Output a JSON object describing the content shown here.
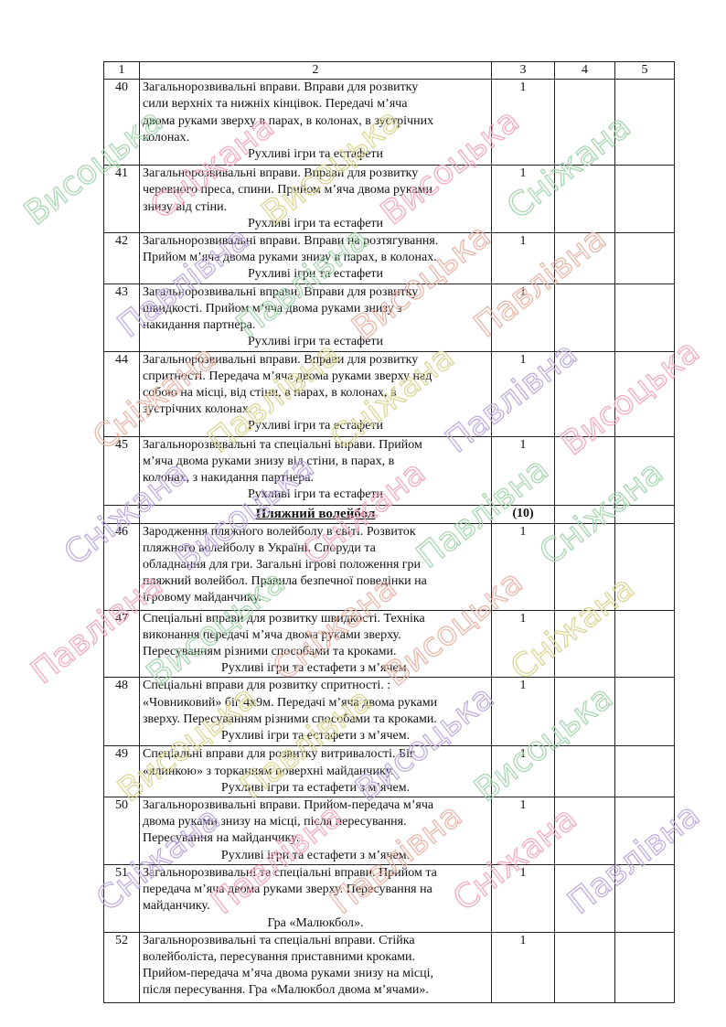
{
  "table": {
    "headers": [
      "1",
      "2",
      "3",
      "4",
      "5"
    ],
    "rows_a": [
      {
        "num": "40",
        "hours": "1",
        "lines": [
          "Загальнорозвивальні вправи. Вправи для розвитку",
          "сили верхніх та нижніх кінцівок. Передачі м’яча",
          "двома руками зверху в парах, в колонах, в зустрічних",
          "колонах."
        ],
        "sub": "Рухливі ігри та естафети"
      },
      {
        "num": "41",
        "hours": "1",
        "lines": [
          "Загальнорозвивальні вправи. Вправи для розвитку",
          "черевного преса, спини. Прийом м’яча двома руками",
          "знизу від стіни."
        ],
        "sub": "Рухливі ігри та естафети"
      },
      {
        "num": "42",
        "hours": "1",
        "lines": [
          "Загальнорозвивальні вправи. Вправи на розтягування.",
          "Прийом м’яча двома руками знизу в парах, в колонах."
        ],
        "sub": "Рухливі ігри та естафети"
      },
      {
        "num": "43",
        "hours": "1",
        "lines": [
          "Загальнорозвивальні вправи. Вправи для розвитку",
          "швидкості. Прийом м’яча двома руками знизу з",
          "накидання партнера."
        ],
        "sub": "Рухливі ігри та естафети"
      },
      {
        "num": "44",
        "hours": "1",
        "lines": [
          "Загальнорозвивальні вправи. Вправи для розвитку",
          "спритності. Передача м’яча двома руками зверху над",
          "собою на місці, від стіни, в парах, в колонах, в",
          "зустрічних колонах."
        ],
        "sub": "Рухливі ігри та естафети"
      },
      {
        "num": "45",
        "hours": "1",
        "lines": [
          "Загальнорозвивальні та спеціальні вправи. Прийом",
          "м’яча двома руками знизу від стіни, в парах, в",
          "колонах, з накидання партнера."
        ],
        "sub": "Рухливі ігри та естафети"
      }
    ],
    "section": {
      "title": "Пляжний волейбол",
      "hours": "(10)"
    },
    "rows_b": [
      {
        "num": "46",
        "hours": "1",
        "lines": [
          "Зародження пляжного волейболу в світі. Розвиток",
          "пляжного волейболу в Україні. Споруди та",
          "обладнання для гри. Загальні ігрові положення гри",
          "пляжний волейбол. Правила безпечної поведінки на",
          "ігровому майданчику."
        ],
        "sub": ""
      },
      {
        "num": "47",
        "hours": "1",
        "lines": [
          "Спеціальні вправи для розвитку швидкості. Техніка",
          "виконання передачі м’яча двома руками зверху.",
          "Пересуванням різними способами та кроками."
        ],
        "sub": "Рухливі ігри та естафети з м’ячем."
      },
      {
        "num": "48",
        "hours": "1",
        "lines": [
          "Спеціальні вправи для розвитку спритності. :",
          "«Човниковий» біг 4х9м. Передачі м’яча двома руками",
          "зверху. Пересуванням різними способами та кроками."
        ],
        "sub": "Рухливі ігри та естафети з м’ячем."
      },
      {
        "num": "49",
        "hours": "1",
        "lines": [
          "Спеціальні вправи для розвитку витривалості. Біг",
          "«ялинкою» з торканням поверхні майданчику."
        ],
        "sub": "Рухливі ігри та естафети з м’ячем."
      },
      {
        "num": "50",
        "hours": "1",
        "lines": [
          "Загальнорозвивальні вправи. Прийом-передача м’яча",
          "двома руками знизу на місці, після пересування.",
          "Пересування на майданчику."
        ],
        "sub": "Рухливі ігри та естафети з м’ячем."
      },
      {
        "num": "51",
        "hours": "1",
        "lines": [
          "Загальнорозвивальні та спеціальні вправи.  Прийом та",
          "передача м’яча двома руками зверху. Пересування на",
          "майданчику."
        ],
        "sub": "Гра «Малюкбол»."
      },
      {
        "num": "52",
        "hours": "1",
        "lines": [
          "Загальнорозвивальні та спеціальні вправи. Стійка",
          "волейболіста,  пересування приставними кроками.",
          "Прийом-передача м’яча двома руками знизу на місці,",
          "після пересування. Гра «Малюкбол двома м’ячами»."
        ],
        "sub": ""
      }
    ]
  },
  "watermark": {
    "words": [
      "Висоцька",
      "Сніжана",
      "Павлівна"
    ],
    "colors": [
      "#9fd3a8",
      "#f2a3b8",
      "#b9a6dc",
      "#d8d28a",
      "#e7b0a0"
    ]
  }
}
